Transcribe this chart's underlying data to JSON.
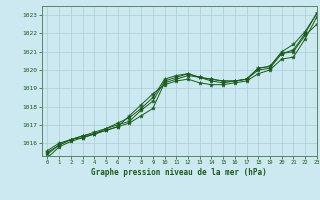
{
  "xlabel": "Graphe pression niveau de la mer (hPa)",
  "xlim": [
    -0.5,
    23
  ],
  "ylim": [
    1015.3,
    1023.5
  ],
  "yticks": [
    1016,
    1017,
    1018,
    1019,
    1020,
    1021,
    1022,
    1023
  ],
  "xticks": [
    0,
    1,
    2,
    3,
    4,
    5,
    6,
    7,
    8,
    9,
    10,
    11,
    12,
    13,
    14,
    15,
    16,
    17,
    18,
    19,
    20,
    21,
    22,
    23
  ],
  "background_color": "#cce8f0",
  "grid_color": "#aaccd8",
  "line_color": "#1a5c1a",
  "marker_color": "#1a5c1a",
  "series": [
    [
      1015.6,
      1016.0,
      1016.2,
      1016.4,
      1016.5,
      1016.7,
      1016.9,
      1017.1,
      1017.5,
      1017.9,
      1019.3,
      1019.5,
      1019.7,
      1019.6,
      1019.5,
      1019.4,
      1019.4,
      1019.5,
      1020.0,
      1020.1,
      1020.9,
      1021.0,
      1021.9,
      1022.5
    ],
    [
      1015.4,
      1015.9,
      1016.2,
      1016.3,
      1016.5,
      1016.8,
      1017.1,
      1017.4,
      1017.9,
      1018.5,
      1019.5,
      1019.7,
      1019.8,
      1019.6,
      1019.5,
      1019.4,
      1019.4,
      1019.5,
      1020.1,
      1020.2,
      1021.0,
      1021.4,
      1022.1,
      1023.1
    ],
    [
      1015.2,
      1015.8,
      1016.1,
      1016.3,
      1016.5,
      1016.7,
      1016.9,
      1017.5,
      1018.1,
      1018.7,
      1019.2,
      1019.4,
      1019.5,
      1019.3,
      1019.2,
      1019.2,
      1019.3,
      1019.4,
      1019.8,
      1020.0,
      1020.6,
      1020.7,
      1021.7,
      1022.9
    ],
    [
      1015.5,
      1015.9,
      1016.2,
      1016.4,
      1016.6,
      1016.8,
      1017.0,
      1017.2,
      1017.8,
      1018.3,
      1019.4,
      1019.6,
      1019.8,
      1019.6,
      1019.4,
      1019.3,
      1019.4,
      1019.5,
      1020.1,
      1020.2,
      1020.9,
      1021.1,
      1022.0,
      1023.1
    ]
  ]
}
